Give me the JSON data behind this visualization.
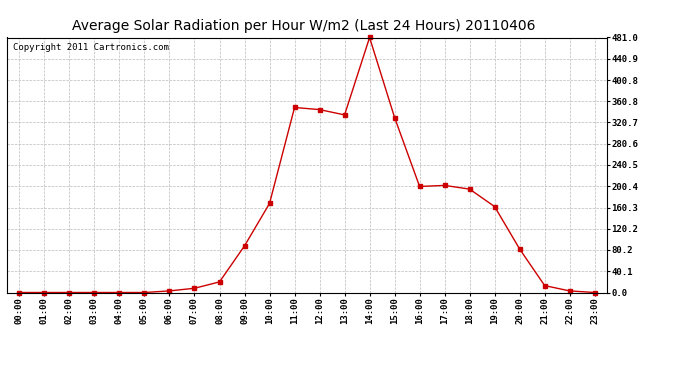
{
  "title": "Average Solar Radiation per Hour W/m2 (Last 24 Hours) 20110406",
  "copyright": "Copyright 2011 Cartronics.com",
  "hours": [
    "00:00",
    "01:00",
    "02:00",
    "03:00",
    "04:00",
    "05:00",
    "06:00",
    "07:00",
    "08:00",
    "09:00",
    "10:00",
    "11:00",
    "12:00",
    "13:00",
    "14:00",
    "15:00",
    "16:00",
    "17:00",
    "18:00",
    "19:00",
    "20:00",
    "21:00",
    "22:00",
    "23:00"
  ],
  "values": [
    0,
    0,
    0,
    0,
    0,
    0,
    3,
    8,
    20,
    88,
    168,
    349,
    345,
    335,
    481,
    330,
    200,
    202,
    195,
    162,
    82,
    13,
    3,
    0
  ],
  "line_color": "#cc0000",
  "marker": "s",
  "marker_size": 2.5,
  "background_color": "#ffffff",
  "grid_color": "#bbbbbb",
  "ylim_min": 0.0,
  "ylim_max": 481.0,
  "ytick_values": [
    0.0,
    40.1,
    80.2,
    120.2,
    160.3,
    200.4,
    240.5,
    280.6,
    320.7,
    360.8,
    400.8,
    440.9,
    481.0
  ],
  "title_fontsize": 10,
  "copyright_fontsize": 6.5,
  "tick_fontsize": 6.5
}
